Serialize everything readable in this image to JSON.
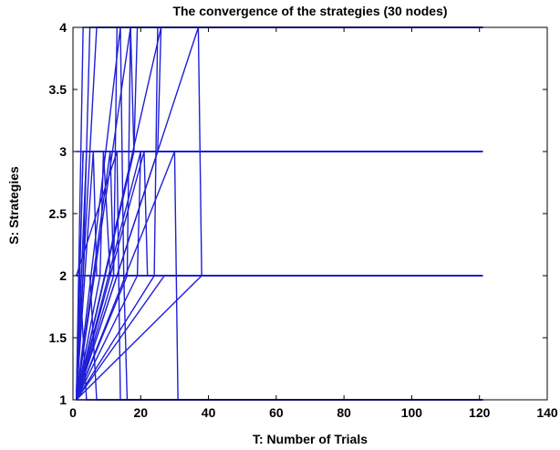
{
  "chart_data": {
    "type": "line",
    "title": "The convergence of the strategies (30 nodes)",
    "xlabel": "T: Number of Trials",
    "ylabel": "S: Strategies",
    "xlim": [
      0,
      140
    ],
    "ylim": [
      1,
      4
    ],
    "xticks": [
      0,
      20,
      40,
      60,
      80,
      100,
      120,
      140
    ],
    "yticks": [
      1,
      1.5,
      2,
      2.5,
      3,
      3.5,
      4
    ],
    "ytick_labels": [
      "1",
      "1.5",
      "2",
      "2.5",
      "3",
      "3.5",
      "4"
    ],
    "grid": false,
    "legend": "none",
    "color": "#1f1fd6",
    "series": [
      {
        "x": [
          1,
          2,
          3,
          121
        ],
        "y": [
          1,
          2,
          3,
          3
        ]
      },
      {
        "x": [
          1,
          3,
          4,
          121
        ],
        "y": [
          1,
          4,
          4,
          4
        ]
      },
      {
        "x": [
          1,
          2,
          4,
          121
        ],
        "y": [
          1,
          2,
          1,
          1
        ]
      },
      {
        "x": [
          1,
          4,
          5,
          121
        ],
        "y": [
          1,
          3,
          3,
          3
        ]
      },
      {
        "x": [
          1,
          3,
          5,
          121
        ],
        "y": [
          1,
          2,
          4,
          4
        ]
      },
      {
        "x": [
          1,
          5,
          7,
          121
        ],
        "y": [
          2,
          2,
          1,
          1
        ]
      },
      {
        "x": [
          1,
          6,
          7,
          121
        ],
        "y": [
          1,
          3,
          2,
          2
        ]
      },
      {
        "x": [
          1,
          7,
          8,
          121
        ],
        "y": [
          1,
          4,
          4,
          4
        ]
      },
      {
        "x": [
          1,
          8,
          9,
          121
        ],
        "y": [
          1,
          2,
          3,
          3
        ]
      },
      {
        "x": [
          1,
          9,
          11,
          121
        ],
        "y": [
          3,
          3,
          2,
          2
        ]
      },
      {
        "x": [
          1,
          11,
          12,
          121
        ],
        "y": [
          1,
          3,
          2,
          2
        ]
      },
      {
        "x": [
          1,
          12,
          13,
          121
        ],
        "y": [
          1,
          2,
          4,
          4
        ]
      },
      {
        "x": [
          1,
          13,
          14,
          121
        ],
        "y": [
          2,
          3,
          1,
          1
        ]
      },
      {
        "x": [
          1,
          14,
          15,
          121
        ],
        "y": [
          1,
          4,
          2,
          2
        ]
      },
      {
        "x": [
          1,
          15,
          16,
          121
        ],
        "y": [
          2,
          2,
          1,
          1
        ]
      },
      {
        "x": [
          1,
          16,
          17,
          121
        ],
        "y": [
          1,
          2,
          4,
          4
        ]
      },
      {
        "x": [
          1,
          17,
          18,
          121
        ],
        "y": [
          1,
          4,
          3,
          3
        ]
      },
      {
        "x": [
          1,
          18,
          19,
          121
        ],
        "y": [
          1,
          3,
          4,
          4
        ]
      },
      {
        "x": [
          1,
          19,
          20,
          121
        ],
        "y": [
          1,
          2,
          3,
          3
        ]
      },
      {
        "x": [
          1,
          20,
          21,
          121
        ],
        "y": [
          1,
          3,
          3,
          3
        ]
      },
      {
        "x": [
          1,
          21,
          22,
          121
        ],
        "y": [
          1,
          3,
          2,
          2
        ]
      },
      {
        "x": [
          1,
          24,
          25,
          121
        ],
        "y": [
          1,
          2,
          4,
          4
        ]
      },
      {
        "x": [
          1,
          25,
          26,
          121
        ],
        "y": [
          1,
          3,
          4,
          4
        ]
      },
      {
        "x": [
          1,
          26,
          27,
          121
        ],
        "y": [
          1,
          4,
          4,
          4
        ]
      },
      {
        "x": [
          1,
          27,
          28,
          121
        ],
        "y": [
          1,
          2,
          2,
          2
        ]
      },
      {
        "x": [
          1,
          30,
          31,
          121
        ],
        "y": [
          1,
          3,
          1,
          1
        ]
      },
      {
        "x": [
          1,
          31,
          32,
          121
        ],
        "y": [
          1,
          1,
          1,
          1
        ]
      },
      {
        "x": [
          1,
          37,
          38,
          121
        ],
        "y": [
          1,
          4,
          2,
          2
        ]
      },
      {
        "x": [
          1,
          38,
          39,
          121
        ],
        "y": [
          1,
          2,
          2,
          2
        ]
      },
      {
        "x": [
          1,
          3,
          5,
          121
        ],
        "y": [
          1,
          3,
          3,
          3
        ]
      }
    ]
  }
}
